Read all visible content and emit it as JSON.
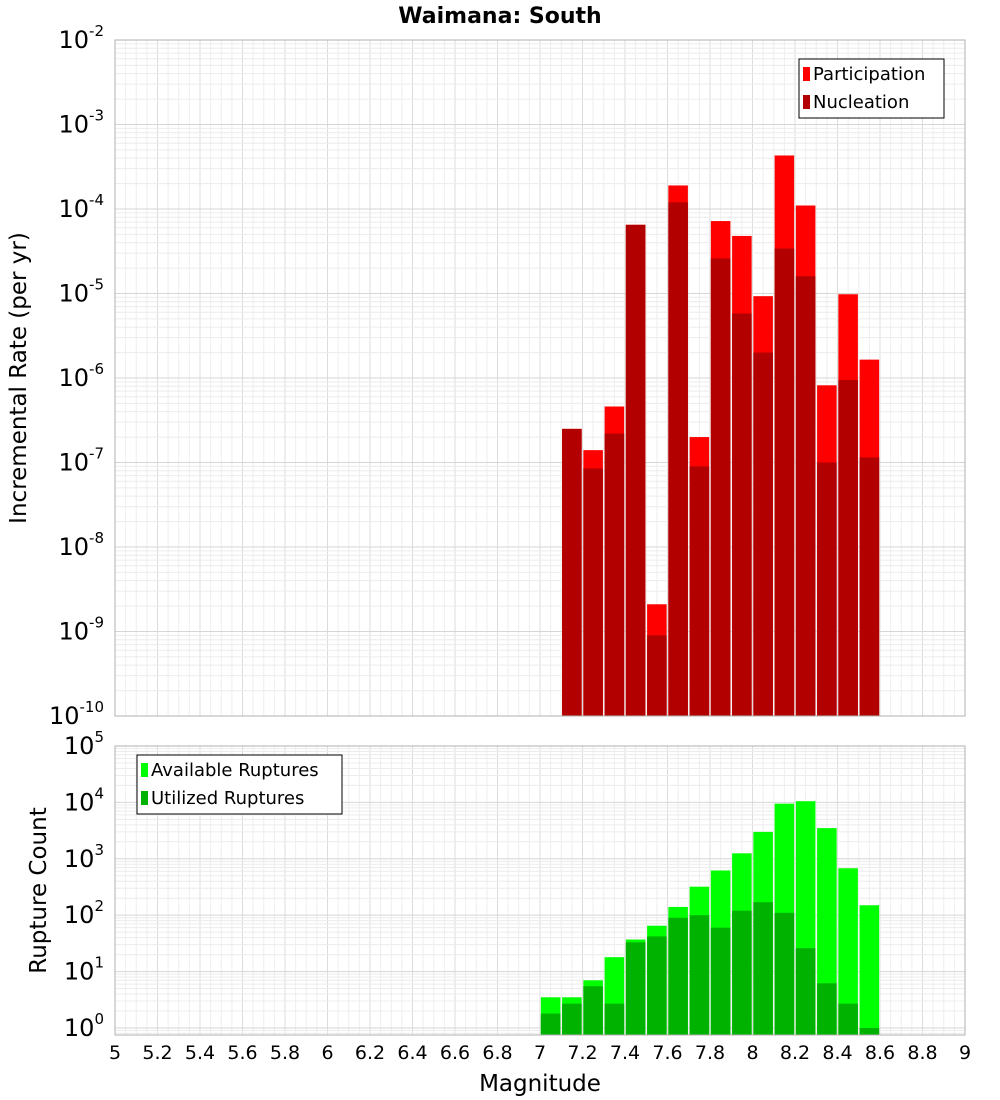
{
  "title": "Waimana: South",
  "chart_data": [
    {
      "type": "bar",
      "name": "top",
      "ylabel": "Incremental Rate (per yr)",
      "xlabel": "",
      "yscale": "log",
      "ylim": [
        1e-10,
        0.01
      ],
      "xlim": [
        5,
        9
      ],
      "grid": true,
      "legend_position": "top-right",
      "yticks": [
        {
          "base": "10",
          "exp": "-10"
        },
        {
          "base": "10",
          "exp": "-9"
        },
        {
          "base": "10",
          "exp": "-8"
        },
        {
          "base": "10",
          "exp": "-7"
        },
        {
          "base": "10",
          "exp": "-6"
        },
        {
          "base": "10",
          "exp": "-5"
        },
        {
          "base": "10",
          "exp": "-4"
        },
        {
          "base": "10",
          "exp": "-3"
        },
        {
          "base": "10",
          "exp": "-2"
        }
      ],
      "x": [
        7.15,
        7.25,
        7.35,
        7.45,
        7.55,
        7.65,
        7.75,
        7.85,
        7.95,
        8.05,
        8.15,
        8.25,
        8.35,
        8.45,
        8.55
      ],
      "series": [
        {
          "name": "Participation",
          "color": "#ff0000",
          "values": [
            2.5e-07,
            1.4e-07,
            4.6e-07,
            6.5e-05,
            2.1e-09,
            0.00019,
            2e-07,
            7.2e-05,
            4.8e-05,
            9.3e-06,
            0.00043,
            0.00011,
            8.2e-07,
            9.8e-06,
            1.65e-06
          ]
        },
        {
          "name": "Nucleation",
          "color": "#b20000",
          "values": [
            2.5e-07,
            8.5e-08,
            2.2e-07,
            6.5e-05,
            9e-10,
            0.00012,
            9e-08,
            2.6e-05,
            5.8e-06,
            2e-06,
            3.4e-05,
            1.6e-05,
            1e-07,
            9.5e-07,
            1.15e-07
          ]
        }
      ]
    },
    {
      "type": "bar",
      "name": "bottom",
      "ylabel": "Rupture Count",
      "xlabel": "Magnitude",
      "yscale": "log",
      "ylim": [
        0.75,
        100000.0
      ],
      "xlim": [
        5,
        9
      ],
      "grid": true,
      "legend_position": "top-left",
      "yticks": [
        {
          "base": "10",
          "exp": "0",
          "value": 1
        },
        {
          "base": "10",
          "exp": "1",
          "value": 10
        },
        {
          "base": "10",
          "exp": "2",
          "value": 100
        },
        {
          "base": "10",
          "exp": "3",
          "value": 1000
        },
        {
          "base": "10",
          "exp": "4",
          "value": 10000
        },
        {
          "base": "10",
          "exp": "5",
          "value": 100000
        }
      ],
      "xticks": [
        "5",
        "5.2",
        "5.4",
        "5.6",
        "5.8",
        "6",
        "6.2",
        "6.4",
        "6.6",
        "6.8",
        "7",
        "7.2",
        "7.4",
        "7.6",
        "7.8",
        "8",
        "8.2",
        "8.4",
        "8.6",
        "8.8",
        "9"
      ],
      "x": [
        7.05,
        7.15,
        7.25,
        7.35,
        7.45,
        7.55,
        7.65,
        7.75,
        7.85,
        7.95,
        8.05,
        8.15,
        8.25,
        8.35,
        8.45,
        8.55
      ],
      "series": [
        {
          "name": "Available Ruptures",
          "color": "#00ff00",
          "values": [
            3.5,
            3.5,
            7,
            18,
            37,
            65,
            140,
            320,
            620,
            1250,
            3000,
            9500,
            10500,
            3500,
            680,
            150
          ]
        },
        {
          "name": "Utilized Ruptures",
          "color": "#00b200",
          "values": [
            1.8,
            2.7,
            5.5,
            2.7,
            33,
            42,
            90,
            100,
            60,
            120,
            170,
            110,
            26,
            6.2,
            2.7,
            1.0
          ]
        }
      ]
    }
  ]
}
